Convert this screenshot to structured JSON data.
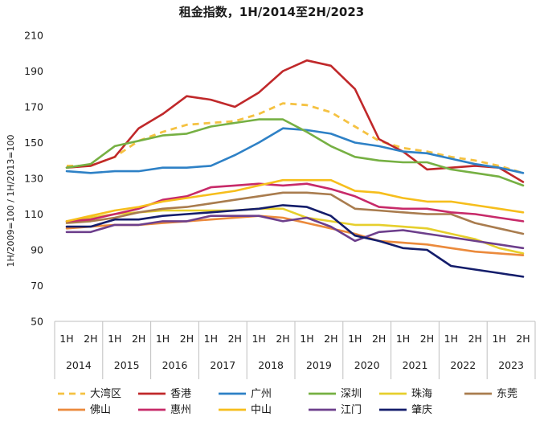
{
  "chart_data": {
    "type": "line",
    "title": "租金指数，1H/2014至2H/2023",
    "ylabel": "1H/2009=100 / 1H/2013=100",
    "xlabel": "",
    "ylim": [
      50,
      210
    ],
    "yticks": [
      "210",
      "190",
      "170",
      "150",
      "130",
      "110",
      "90",
      "70",
      "50"
    ],
    "halves": [
      "1H",
      "2H"
    ],
    "years": [
      "2014",
      "2015",
      "2016",
      "2017",
      "2018",
      "2019",
      "2020",
      "2021",
      "2022",
      "2023"
    ],
    "categories": [
      "1H/2014",
      "2H/2014",
      "1H/2015",
      "2H/2015",
      "1H/2016",
      "2H/2016",
      "1H/2017",
      "2H/2017",
      "1H/2018",
      "2H/2018",
      "1H/2019",
      "2H/2019",
      "1H/2020",
      "2H/2020",
      "1H/2021",
      "2H/2021",
      "1H/2022",
      "2H/2022",
      "1H/2023",
      "2H/2023"
    ],
    "grid": false,
    "legend_position": "bottom",
    "series": [
      {
        "name": "大湾区",
        "color": "#f5c242",
        "dash": true,
        "values": [
          137,
          137,
          142,
          151,
          156,
          160,
          161,
          162,
          166,
          172,
          171,
          167,
          159,
          151,
          147,
          145,
          142,
          140,
          137,
          133
        ]
      },
      {
        "name": "香港",
        "color": "#c0282a",
        "values": [
          136,
          137,
          142,
          158,
          166,
          176,
          174,
          170,
          178,
          190,
          196,
          193,
          180,
          152,
          145,
          135,
          136,
          137,
          136,
          128
        ]
      },
      {
        "name": "广州",
        "color": "#2e81c6",
        "values": [
          134,
          133,
          134,
          134,
          136,
          136,
          137,
          143,
          150,
          158,
          157,
          155,
          150,
          148,
          145,
          144,
          141,
          138,
          136,
          133
        ]
      },
      {
        "name": "深圳",
        "color": "#76b043",
        "values": [
          136,
          138,
          148,
          151,
          154,
          155,
          159,
          161,
          163,
          163,
          156,
          148,
          142,
          140,
          139,
          139,
          135,
          133,
          131,
          126
        ]
      },
      {
        "name": "珠海",
        "color": "#e6cf2c",
        "values": [
          106,
          108,
          110,
          111,
          112,
          112,
          112,
          112,
          113,
          113,
          108,
          106,
          104,
          104,
          103,
          102,
          99,
          96,
          91,
          88
        ]
      },
      {
        "name": "东莞",
        "color": "#a97c4e",
        "values": [
          105,
          106,
          108,
          111,
          113,
          114,
          116,
          118,
          120,
          122,
          122,
          121,
          113,
          112,
          111,
          110,
          110,
          105,
          102,
          99
        ]
      },
      {
        "name": "佛山",
        "color": "#eb8a3c",
        "values": [
          102,
          103,
          104,
          104,
          105,
          106,
          107,
          108,
          109,
          108,
          105,
          102,
          99,
          95,
          94,
          93,
          91,
          89,
          88,
          87
        ]
      },
      {
        "name": "惠州",
        "color": "#c72a69",
        "values": [
          106,
          107,
          110,
          113,
          118,
          120,
          125,
          126,
          127,
          126,
          127,
          124,
          120,
          114,
          113,
          113,
          111,
          110,
          108,
          106
        ]
      },
      {
        "name": "中山",
        "color": "#f6be1c",
        "values": [
          106,
          109,
          112,
          114,
          117,
          119,
          121,
          123,
          126,
          129,
          129,
          129,
          123,
          122,
          119,
          117,
          117,
          115,
          113,
          111
        ]
      },
      {
        "name": "江门",
        "color": "#6d3f8c",
        "values": [
          100,
          100,
          104,
          104,
          106,
          106,
          109,
          109,
          109,
          106,
          108,
          103,
          95,
          100,
          101,
          99,
          97,
          95,
          93,
          91
        ]
      },
      {
        "name": "肇庆",
        "color": "#141d6b",
        "values": [
          103,
          103,
          107,
          107,
          109,
          110,
          111,
          112,
          113,
          115,
          114,
          109,
          98,
          95,
          91,
          90,
          81,
          79,
          77,
          75
        ]
      }
    ]
  }
}
